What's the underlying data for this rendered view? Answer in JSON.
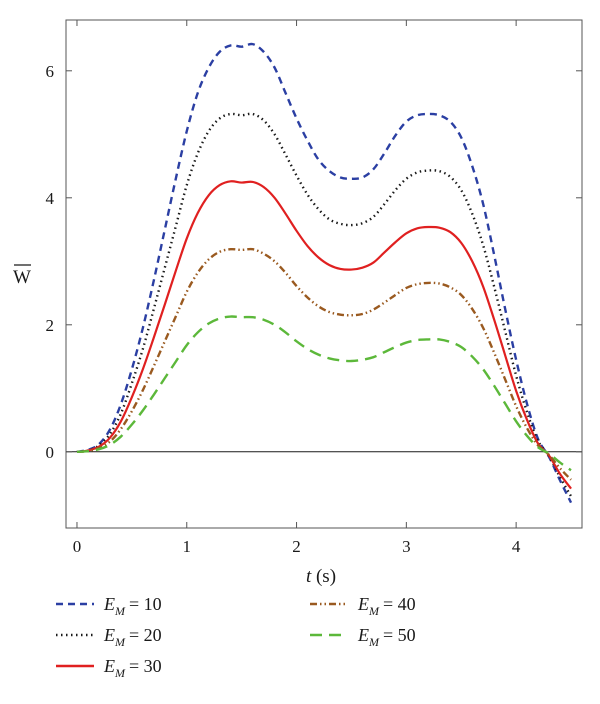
{
  "chart_data": {
    "type": "line",
    "xlabel_var": "t",
    "xlabel_unit": "(s)",
    "ylabel": "W",
    "xlim": [
      -0.1,
      4.6
    ],
    "ylim": [
      -1.2,
      6.8
    ],
    "x_ticks": [
      "0",
      "1",
      "2",
      "3",
      "4"
    ],
    "y_ticks": [
      "0",
      "2",
      "4",
      "6"
    ],
    "x": [
      0,
      0.1,
      0.2,
      0.3,
      0.4,
      0.5,
      0.6,
      0.7,
      0.8,
      0.9,
      1.0,
      1.1,
      1.2,
      1.3,
      1.4,
      1.5,
      1.6,
      1.7,
      1.8,
      1.9,
      2.0,
      2.1,
      2.2,
      2.3,
      2.4,
      2.5,
      2.6,
      2.7,
      2.8,
      2.9,
      3.0,
      3.1,
      3.2,
      3.3,
      3.4,
      3.5,
      3.6,
      3.7,
      3.8,
      3.9,
      4.0,
      4.1,
      4.2,
      4.3,
      4.4,
      4.5
    ],
    "series": [
      {
        "name": "E_M = 10",
        "sym": "E",
        "sub": "M",
        "eq": "= 10",
        "color": "#2b3fa3",
        "dash": "7,5",
        "values": [
          0,
          0.03,
          0.12,
          0.35,
          0.75,
          1.3,
          1.95,
          2.7,
          3.5,
          4.3,
          5.05,
          5.65,
          6.05,
          6.3,
          6.4,
          6.38,
          6.42,
          6.3,
          6.05,
          5.65,
          5.25,
          4.9,
          4.6,
          4.42,
          4.32,
          4.3,
          4.32,
          4.45,
          4.7,
          4.98,
          5.2,
          5.3,
          5.32,
          5.3,
          5.2,
          4.95,
          4.5,
          3.9,
          3.1,
          2.25,
          1.45,
          0.75,
          0.2,
          -0.08,
          -0.45,
          -0.8
        ]
      },
      {
        "name": "E_M = 20",
        "sym": "E",
        "sub": "M",
        "eq": "= 20",
        "color": "#1a1a1a",
        "dash": "1.5,3.5",
        "values": [
          0,
          0.02,
          0.1,
          0.28,
          0.6,
          1.08,
          1.62,
          2.25,
          2.9,
          3.55,
          4.2,
          4.7,
          5.05,
          5.25,
          5.32,
          5.3,
          5.32,
          5.22,
          5.0,
          4.68,
          4.35,
          4.05,
          3.82,
          3.66,
          3.59,
          3.57,
          3.6,
          3.7,
          3.9,
          4.12,
          4.3,
          4.4,
          4.43,
          4.42,
          4.33,
          4.12,
          3.75,
          3.25,
          2.6,
          1.9,
          1.2,
          0.62,
          0.17,
          -0.07,
          -0.4,
          -0.7
        ]
      },
      {
        "name": "E_M = 30",
        "sym": "E",
        "sub": "M",
        "eq": "= 30",
        "color": "#e02020",
        "dash": "",
        "values": [
          0,
          0.02,
          0.08,
          0.22,
          0.48,
          0.86,
          1.3,
          1.8,
          2.32,
          2.85,
          3.36,
          3.76,
          4.04,
          4.2,
          4.26,
          4.24,
          4.25,
          4.17,
          4.0,
          3.75,
          3.48,
          3.24,
          3.06,
          2.94,
          2.88,
          2.87,
          2.9,
          2.98,
          3.14,
          3.3,
          3.44,
          3.52,
          3.54,
          3.53,
          3.46,
          3.29,
          3.0,
          2.6,
          2.08,
          1.52,
          0.96,
          0.5,
          0.13,
          -0.06,
          -0.35,
          -0.58
        ]
      },
      {
        "name": "E_M = 40",
        "sym": "E",
        "sub": "M",
        "eq": "= 40",
        "color": "#9a5a20",
        "dash": "7,3,1.5,3,1.5,3",
        "values": [
          0,
          0.01,
          0.06,
          0.16,
          0.36,
          0.64,
          0.97,
          1.35,
          1.74,
          2.13,
          2.52,
          2.82,
          3.03,
          3.15,
          3.19,
          3.18,
          3.19,
          3.12,
          3.0,
          2.82,
          2.61,
          2.43,
          2.29,
          2.2,
          2.16,
          2.15,
          2.17,
          2.24,
          2.35,
          2.47,
          2.58,
          2.64,
          2.66,
          2.65,
          2.59,
          2.47,
          2.25,
          1.95,
          1.56,
          1.14,
          0.72,
          0.37,
          0.1,
          -0.05,
          -0.26,
          -0.44
        ]
      },
      {
        "name": "E_M = 50",
        "sym": "E",
        "sub": "M",
        "eq": "= 50",
        "color": "#5cb83a",
        "dash": "12,7",
        "values": [
          0,
          0.01,
          0.04,
          0.11,
          0.24,
          0.43,
          0.65,
          0.9,
          1.16,
          1.42,
          1.68,
          1.88,
          2.02,
          2.1,
          2.13,
          2.12,
          2.12,
          2.08,
          2.0,
          1.88,
          1.74,
          1.62,
          1.53,
          1.47,
          1.44,
          1.43,
          1.45,
          1.49,
          1.57,
          1.65,
          1.72,
          1.76,
          1.77,
          1.77,
          1.73,
          1.65,
          1.5,
          1.3,
          1.04,
          0.76,
          0.48,
          0.25,
          0.07,
          -0.03,
          -0.17,
          -0.29
        ]
      }
    ]
  }
}
